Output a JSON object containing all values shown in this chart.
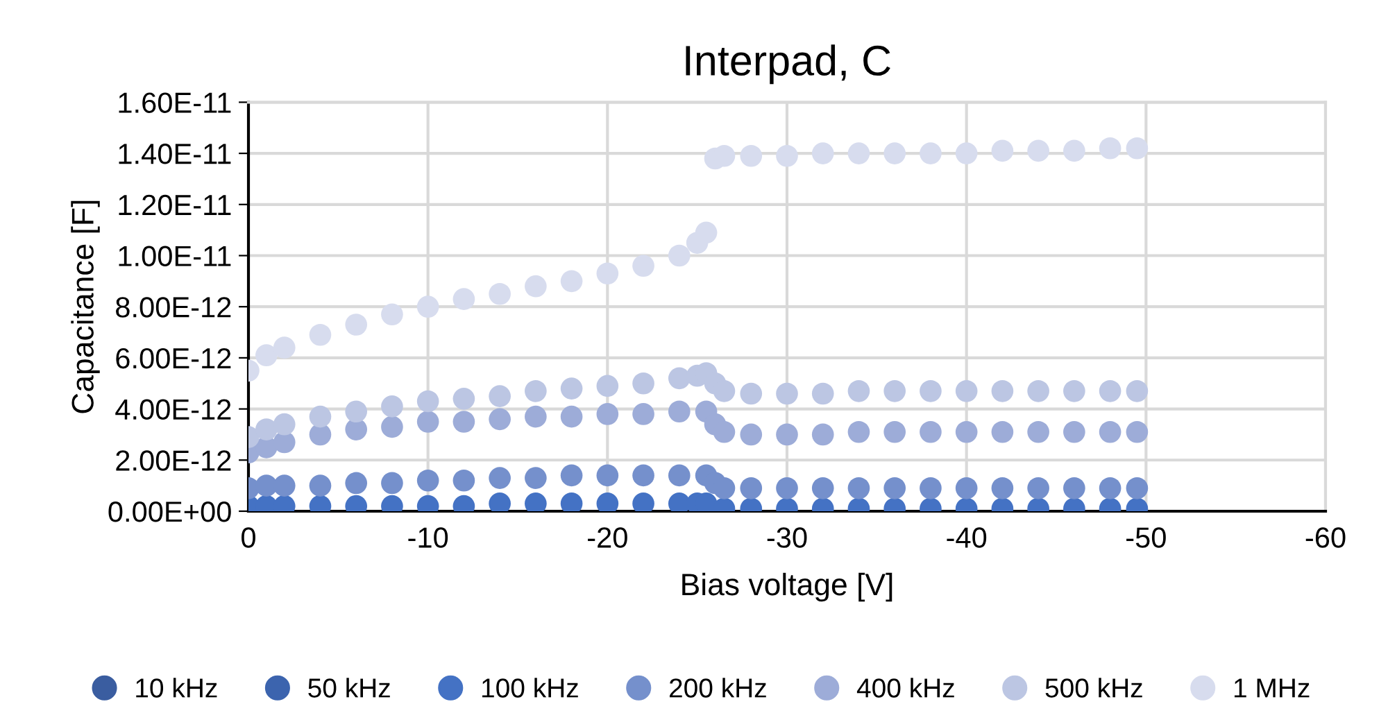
{
  "chart_data": {
    "type": "scatter",
    "title": "Interpad, C",
    "xlabel": "Bias voltage [V]",
    "ylabel": "Capacitance [F]",
    "x": [
      0,
      -1,
      -2,
      -4,
      -6,
      -8,
      -10,
      -12,
      -14,
      -16,
      -18,
      -20,
      -22,
      -24,
      -25,
      -25.5,
      -26,
      -26.5,
      -28,
      -30,
      -32,
      -34,
      -36,
      -38,
      -40,
      -42,
      -44,
      -46,
      -48,
      -49.5
    ],
    "xlim": [
      0,
      -60
    ],
    "xticks": [
      0,
      -10,
      -20,
      -30,
      -40,
      -50,
      -60
    ],
    "ylim": [
      0,
      1.6e-11
    ],
    "yticks": [
      {
        "value": 0,
        "label": "0.00E+00"
      },
      {
        "value": 2e-12,
        "label": "2.00E-12"
      },
      {
        "value": 4e-12,
        "label": "4.00E-12"
      },
      {
        "value": 6e-12,
        "label": "6.00E-12"
      },
      {
        "value": 8e-12,
        "label": "8.00E-12"
      },
      {
        "value": 1e-11,
        "label": "1.00E-11"
      },
      {
        "value": 1.2e-11,
        "label": "1.20E-11"
      },
      {
        "value": 1.4e-11,
        "label": "1.40E-11"
      },
      {
        "value": 1.6e-11,
        "label": "1.60E-11"
      }
    ],
    "grid": true,
    "legend": "bottom",
    "marker": "circle",
    "series": [
      {
        "name": "10 kHz",
        "color": "#3a5da0",
        "values": [
          null,
          null,
          null,
          null,
          null,
          null,
          null,
          null,
          null,
          null,
          null,
          null,
          null,
          null,
          null,
          null,
          null,
          null,
          null,
          null,
          null,
          null,
          null,
          null,
          null,
          null,
          null,
          null,
          null,
          null
        ]
      },
      {
        "name": "50 kHz",
        "color": "#3c64ae",
        "values": [
          null,
          null,
          null,
          null,
          null,
          null,
          null,
          null,
          null,
          null,
          null,
          null,
          null,
          null,
          null,
          null,
          null,
          null,
          null,
          null,
          null,
          null,
          null,
          null,
          null,
          null,
          null,
          null,
          null,
          null
        ]
      },
      {
        "name": "100 kHz",
        "color": "#4472c4",
        "values": [
          2e-13,
          2e-13,
          2e-13,
          2e-13,
          2e-13,
          2e-13,
          2e-13,
          2e-13,
          3e-13,
          3e-13,
          3e-13,
          3e-13,
          3e-13,
          3e-13,
          3e-13,
          3e-13,
          null,
          1e-13,
          1e-13,
          1e-13,
          1e-13,
          1e-13,
          1e-13,
          1e-13,
          1e-13,
          1e-13,
          1e-13,
          1e-13,
          1e-13,
          1e-13
        ]
      },
      {
        "name": "200 kHz",
        "color": "#7590cc",
        "values": [
          9e-13,
          1e-12,
          1e-12,
          1e-12,
          1.1e-12,
          1.1e-12,
          1.2e-12,
          1.2e-12,
          1.3e-12,
          1.3e-12,
          1.4e-12,
          1.4e-12,
          1.4e-12,
          1.4e-12,
          null,
          1.4e-12,
          1.1e-12,
          9e-13,
          9e-13,
          9e-13,
          9e-13,
          9e-13,
          9e-13,
          9e-13,
          9e-13,
          9e-13,
          9e-13,
          9e-13,
          9e-13,
          9e-13
        ]
      },
      {
        "name": "400 kHz",
        "color": "#9dacd8",
        "values": [
          2.3e-12,
          2.5e-12,
          2.7e-12,
          3e-12,
          3.2e-12,
          3.3e-12,
          3.5e-12,
          3.5e-12,
          3.6e-12,
          3.7e-12,
          3.7e-12,
          3.8e-12,
          3.8e-12,
          3.9e-12,
          null,
          3.9e-12,
          3.4e-12,
          3.1e-12,
          3e-12,
          3e-12,
          3e-12,
          3.1e-12,
          3.1e-12,
          3.1e-12,
          3.1e-12,
          3.1e-12,
          3.1e-12,
          3.1e-12,
          3.1e-12,
          3.1e-12
        ]
      },
      {
        "name": "500 kHz",
        "color": "#bcc6e3",
        "values": [
          2.9e-12,
          3.2e-12,
          3.4e-12,
          3.7e-12,
          3.9e-12,
          4.1e-12,
          4.3e-12,
          4.4e-12,
          4.5e-12,
          4.7e-12,
          4.8e-12,
          4.9e-12,
          5e-12,
          5.2e-12,
          5.3e-12,
          5.4e-12,
          5e-12,
          4.7e-12,
          4.6e-12,
          4.6e-12,
          4.6e-12,
          4.7e-12,
          4.7e-12,
          4.7e-12,
          4.7e-12,
          4.7e-12,
          4.7e-12,
          4.7e-12,
          4.7e-12,
          4.7e-12
        ]
      },
      {
        "name": "1 MHz",
        "color": "#d7dcee",
        "values": [
          5.5e-12,
          6.1e-12,
          6.4e-12,
          6.9e-12,
          7.3e-12,
          7.7e-12,
          8e-12,
          8.3e-12,
          8.5e-12,
          8.8e-12,
          9e-12,
          9.3e-12,
          9.6e-12,
          1e-11,
          1.05e-11,
          1.09e-11,
          1.38e-11,
          1.39e-11,
          1.39e-11,
          1.39e-11,
          1.4e-11,
          1.4e-11,
          1.4e-11,
          1.4e-11,
          1.4e-11,
          1.41e-11,
          1.41e-11,
          1.41e-11,
          1.42e-11,
          1.42e-11
        ]
      }
    ]
  }
}
